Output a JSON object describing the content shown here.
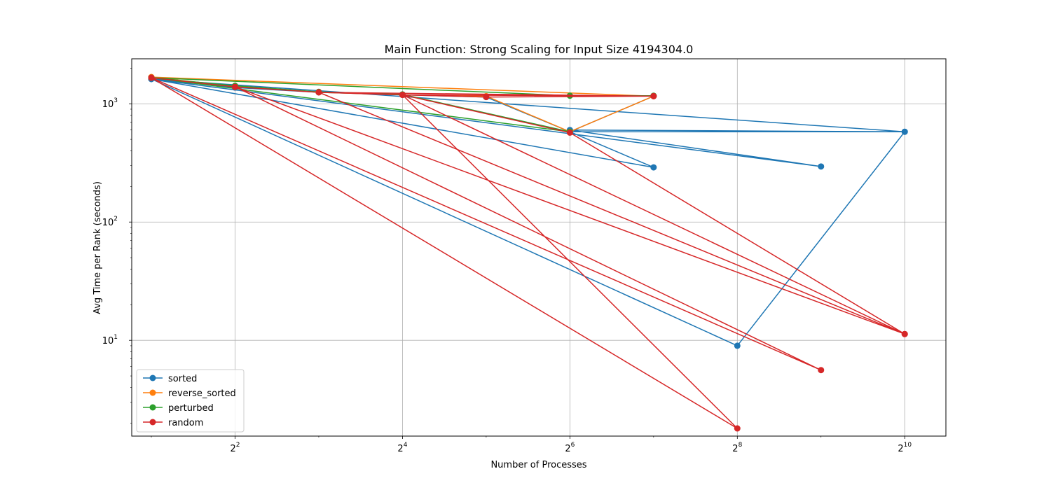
{
  "chart_data": {
    "type": "line",
    "title": "Main Function: Strong Scaling for Input Size 4194304.0",
    "xlabel": "Number of Processes",
    "ylabel": "Avg Time per Rank (seconds)",
    "xscale": "log2",
    "yscale": "log10",
    "xlim": [
      1.7,
      1440
    ],
    "ylim": [
      1.55,
      2400
    ],
    "xticks": [
      {
        "value": 4,
        "base": "2",
        "exp": "2"
      },
      {
        "value": 16,
        "base": "2",
        "exp": "4"
      },
      {
        "value": 64,
        "base": "2",
        "exp": "6"
      },
      {
        "value": 256,
        "base": "2",
        "exp": "8"
      },
      {
        "value": 1024,
        "base": "2",
        "exp": "10"
      }
    ],
    "yticks": [
      {
        "value": 10,
        "base": "10",
        "exp": "1"
      },
      {
        "value": 100,
        "base": "10",
        "exp": "2"
      },
      {
        "value": 1000,
        "base": "10",
        "exp": "3"
      }
    ],
    "grid": true,
    "legend_position": "lower-left",
    "series": [
      {
        "name": "sorted",
        "color": "#1f77b4",
        "points": [
          [
            2,
            1620
          ],
          [
            4,
            1370
          ],
          [
            8,
            1250
          ],
          [
            16,
            1190
          ],
          [
            32,
            1140
          ],
          [
            64,
            580
          ],
          [
            128,
            290
          ],
          [
            2,
            1620
          ],
          [
            256,
            9
          ],
          [
            1024,
            580
          ],
          [
            2,
            1620
          ],
          [
            512,
            295
          ],
          [
            64,
            600
          ],
          [
            1024,
            580
          ],
          [
            64,
            580
          ],
          [
            128,
            1160
          ]
        ]
      },
      {
        "name": "reverse_sorted",
        "color": "#ff7f0e",
        "points": [
          [
            2,
            1680
          ],
          [
            4,
            1400
          ],
          [
            8,
            1250
          ],
          [
            16,
            1190
          ],
          [
            32,
            1160
          ],
          [
            64,
            580
          ],
          [
            128,
            1160
          ],
          [
            2,
            1680
          ],
          [
            128,
            1160
          ]
        ]
      },
      {
        "name": "perturbed",
        "color": "#2ca02c",
        "points": [
          [
            2,
            1660
          ],
          [
            4,
            1420
          ],
          [
            8,
            1260
          ],
          [
            16,
            1200
          ],
          [
            64,
            580
          ],
          [
            2,
            1660
          ],
          [
            64,
            1170
          ],
          [
            128,
            1170
          ]
        ]
      },
      {
        "name": "random",
        "color": "#d62728",
        "points": [
          [
            2,
            1660
          ],
          [
            4,
            1390
          ],
          [
            8,
            1250
          ],
          [
            16,
            1190
          ],
          [
            32,
            1140
          ],
          [
            128,
            1160
          ],
          [
            16,
            1190
          ],
          [
            64,
            570
          ],
          [
            1024,
            11.3
          ],
          [
            4,
            1390
          ],
          [
            512,
            5.6
          ],
          [
            2,
            1660
          ],
          [
            256,
            1.8
          ],
          [
            16,
            1190
          ],
          [
            1024,
            11.3
          ],
          [
            8,
            1250
          ],
          [
            128,
            1160
          ]
        ]
      }
    ]
  }
}
